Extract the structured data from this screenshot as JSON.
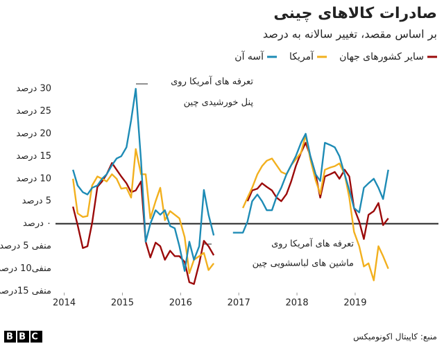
{
  "chart_data": {
    "type": "line",
    "title": "صادرات کالاهای چینی",
    "subtitle": "بر اساس مقصد، تغییر سالانه به درصد",
    "source": "منبع: کاپیتال اکونومیکس",
    "logo": "BBC",
    "annotations": [
      {
        "lines": [
          "تعرفه های آمریکا روی",
          "پنل خورشیدی چین"
        ]
      },
      {
        "lines": [
          "تعرفه های آمریکا روی",
          "ماشین های لباسشویی چین"
        ]
      }
    ],
    "x": [
      2014.15,
      2014.23,
      2014.32,
      2014.4,
      2014.48,
      2014.57,
      2014.65,
      2014.73,
      2014.82,
      2014.9,
      2014.98,
      2015.07,
      2015.15,
      2015.23,
      2015.32,
      2015.4,
      2015.48,
      2015.57,
      2015.65,
      2015.73,
      2015.82,
      2015.9,
      2015.98,
      2016.07,
      2016.15,
      2016.23,
      2016.32,
      2016.4,
      2016.48,
      2016.57,
      2016.65,
      2016.73,
      2016.82,
      2016.9,
      2016.98,
      2017.07,
      2017.15,
      2017.23,
      2017.32,
      2017.4,
      2017.48,
      2017.57,
      2017.65,
      2017.73,
      2017.82,
      2017.9,
      2017.98,
      2018.07,
      2018.15,
      2018.23,
      2018.32,
      2018.4,
      2018.48,
      2018.57,
      2018.65,
      2018.73,
      2018.82,
      2018.9,
      2018.98,
      2019.07,
      2019.15,
      2019.23,
      2019.32,
      2019.4,
      2019.48,
      2019.57
    ],
    "series": [
      {
        "name": "سایر کشورهای جهان",
        "color": "#9b0a0a",
        "values": [
          3.8,
          -0.3,
          -5.4,
          -5,
          0.2,
          8.2,
          9.4,
          11,
          13.5,
          12,
          10.5,
          9,
          7,
          7.4,
          9.4,
          -4,
          -7.5,
          -4.2,
          -5,
          -8,
          -6,
          -7.2,
          -7.2,
          -8.5,
          -13,
          -13.4,
          -8.8,
          -3.8,
          -5,
          -7,
          null,
          null,
          null,
          null,
          null,
          null,
          5,
          7.4,
          7.8,
          9,
          8.2,
          7.4,
          5.8,
          5,
          6.6,
          9.4,
          12.8,
          15.8,
          18,
          15,
          11,
          5.8,
          10.5,
          11,
          11.5,
          10,
          12,
          10.5,
          3.5,
          0.5,
          -3.4,
          2,
          2.8,
          4.6,
          -0.3,
          1.2
        ]
      },
      {
        "name": "آمریکا",
        "color": "#f2b01e",
        "values": [
          10,
          2.3,
          1.5,
          1.7,
          8.5,
          10.5,
          10,
          9.4,
          11,
          10,
          7.8,
          8,
          5.8,
          16.6,
          11,
          11,
          1.2,
          5,
          8,
          0.8,
          2.8,
          2,
          1.2,
          -3,
          -11,
          -8,
          -7.2,
          -6.5,
          -10.3,
          -8.8,
          null,
          null,
          null,
          null,
          null,
          3.5,
          5.8,
          8,
          11,
          12.8,
          14,
          14.5,
          13,
          11.5,
          11,
          13,
          14.3,
          15.8,
          19.7,
          14.3,
          9.7,
          6.6,
          12,
          12.5,
          12.8,
          13.4,
          11,
          5.8,
          -1.8,
          -5,
          -9.5,
          -8.8,
          -12.6,
          -5,
          -7.2,
          -10
        ]
      },
      {
        "name": "آسه آن",
        "color": "#1d8bb5",
        "values": [
          12,
          8.5,
          7,
          6.5,
          8,
          8.5,
          10,
          11,
          13,
          14.5,
          15,
          17,
          23,
          30,
          14,
          -4,
          0,
          3,
          2,
          3,
          -0.5,
          -1,
          -5,
          -10.5,
          -4,
          -8,
          -5,
          7.5,
          2,
          -2.6,
          null,
          null,
          null,
          -2,
          -2,
          -2,
          0.5,
          5,
          6.5,
          5,
          3,
          3,
          6,
          8,
          11,
          13,
          15,
          18,
          20,
          15,
          11,
          9.5,
          18,
          17.5,
          17,
          15,
          11,
          7.5,
          3.5,
          2.5,
          8,
          9,
          10,
          8,
          5.5,
          12
        ]
      }
    ],
    "xlim": [
      2013.85,
      2020.05
    ],
    "xticks": [
      2014,
      2015,
      2016,
      2017,
      2018,
      2019
    ],
    "ylim": [
      -15,
      30
    ],
    "yticks": [
      {
        "value": 30,
        "label": "30 درصد"
      },
      {
        "value": 25,
        "label": "25 درصد"
      },
      {
        "value": 20,
        "label": "20 درصد"
      },
      {
        "value": 15,
        "label": "15 درصد"
      },
      {
        "value": 10,
        "label": "10 درصد"
      },
      {
        "value": 5,
        "label": "5 درصد"
      },
      {
        "value": 0,
        "label": "۰ درصد"
      },
      {
        "value": -5,
        "label": "منفی 5 درصد"
      },
      {
        "value": -10,
        "label": "منفی10 درصد"
      },
      {
        "value": -15,
        "label": "منفی 15درصد"
      }
    ],
    "grid": false
  }
}
